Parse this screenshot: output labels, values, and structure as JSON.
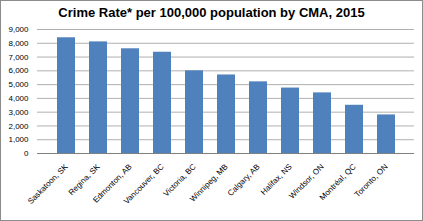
{
  "chart_data": {
    "type": "bar",
    "title": "Crime Rate* per 100,000 population by CMA, 2015",
    "categories": [
      "Saskatoon, SK",
      "Regina, SK",
      "Edmonton, AB",
      "Vancouver, BC",
      "Victoria, BC",
      "Winnipeg, MB",
      "Calgary, AB",
      "Halifax, NS",
      "Windsor, ON",
      "Montréal, QC",
      "Toronto, ON"
    ],
    "values": [
      8400,
      8100,
      7600,
      7350,
      6000,
      5700,
      5200,
      4750,
      4400,
      3500,
      2800
    ],
    "color": "#4f81bd",
    "ylim": [
      0,
      9000
    ],
    "yticks": [
      0,
      1000,
      2000,
      3000,
      4000,
      5000,
      6000,
      7000,
      8000,
      9000
    ],
    "grid": true
  }
}
